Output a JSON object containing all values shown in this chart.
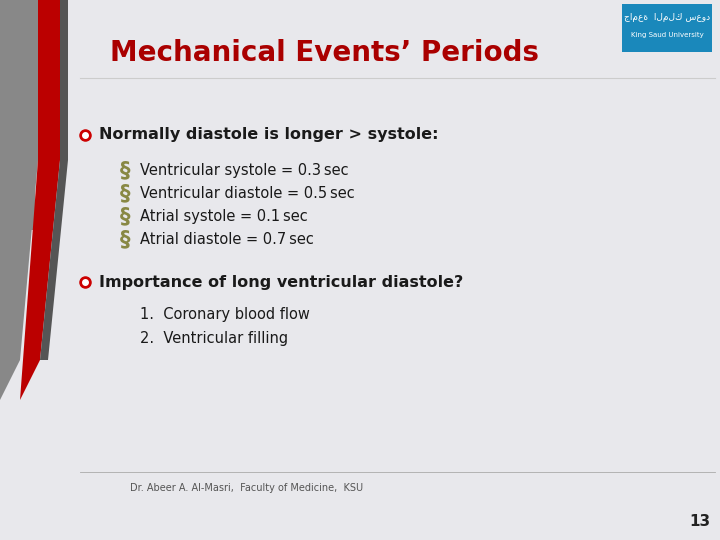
{
  "title": "Mechanical Events’ Periods",
  "title_color": "#aa0000",
  "bg_color": "#e8e8ec",
  "bullet1": "Normally diastole is longer > systole:",
  "sub_bullets": [
    "Ventricular systole = 0.3 sec",
    "Ventricular diastole = 0.5 sec",
    "Atrial systole = 0.1 sec",
    "Atrial diastole = 0.7 sec"
  ],
  "bullet2": "Importance of long ventricular diastole?",
  "numbered": [
    "1.  Coronary blood flow",
    "2.  Ventricular filling"
  ],
  "footer": "Dr. Abeer A. Al-Masri,  Faculty of Medicine,  KSU",
  "page_num": "13",
  "red_color": "#bb0000",
  "text_color": "#1a1a1a",
  "gray_stripe_color": "#888888",
  "dark_stripe_color": "#555555",
  "logo_bg": "#1a88bb",
  "section_symbol_color": "#888844",
  "bullet_dot_color": "#cc0000"
}
